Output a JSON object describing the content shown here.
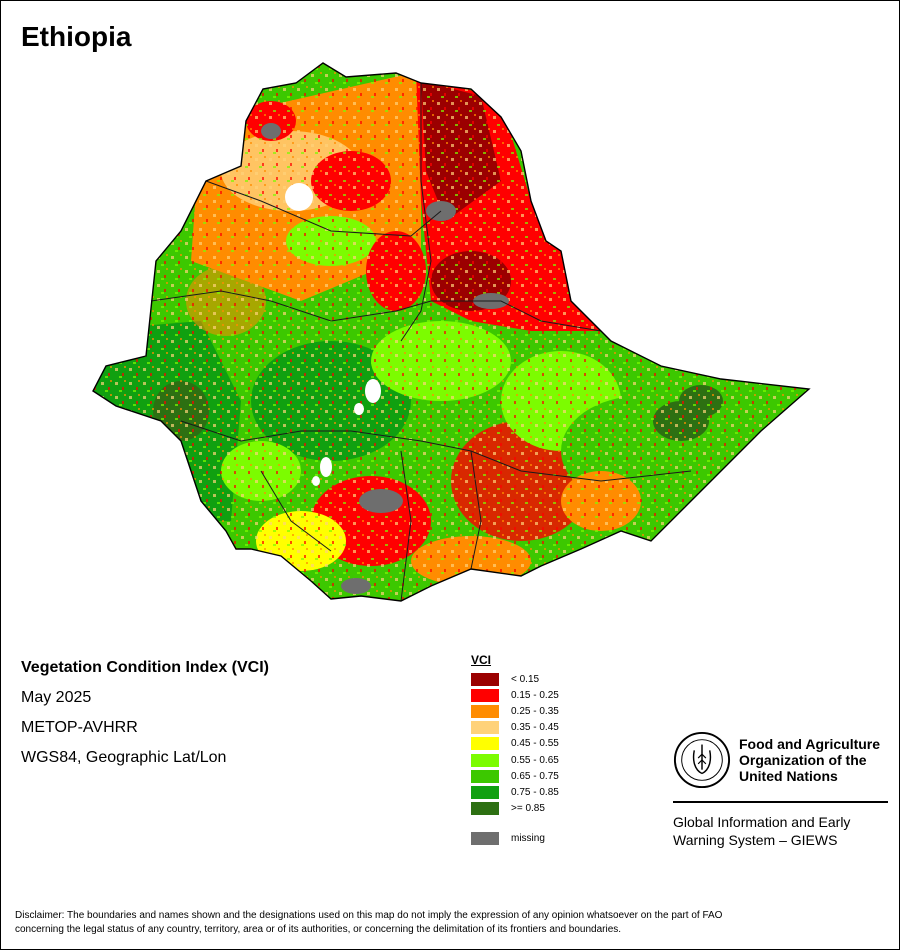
{
  "header": {
    "country": "Ethiopia"
  },
  "info": {
    "product": "Vegetation Condition Index (VCI)",
    "period": "May 2025",
    "sensor": "METOP-AVHRR",
    "projection": "WGS84, Geographic Lat/Lon"
  },
  "legend": {
    "title": "VCI",
    "classes": [
      {
        "label": "< 0.15",
        "color": "#9b0000"
      },
      {
        "label": "0.15 - 0.25",
        "color": "#ff0000"
      },
      {
        "label": "0.25 - 0.35",
        "color": "#ff8c00"
      },
      {
        "label": "0.35 - 0.45",
        "color": "#ffd27a"
      },
      {
        "label": "0.45 - 0.55",
        "color": "#ffff00"
      },
      {
        "label": "0.55 - 0.65",
        "color": "#7cfc00"
      },
      {
        "label": "0.65 - 0.75",
        "color": "#3cc800"
      },
      {
        "label": "0.75 - 0.85",
        "color": "#10a010"
      },
      {
        "label": ">= 0.85",
        "color": "#2d7012"
      }
    ],
    "missing": {
      "label": "missing",
      "color": "#6e6e6e"
    }
  },
  "branding": {
    "org_line1": "Food and Agriculture",
    "org_line2": "Organization of the",
    "org_line3": "United Nations",
    "giews_line1": "Global Information and Early",
    "giews_line2": "Warning System – GIEWS"
  },
  "disclaimer": {
    "line1": "Disclaimer: The boundaries and names shown and the designations used on this map do not imply the expression of any opinion whatsoever on the part of FAO",
    "line2": "concerning the legal status of any country, territory, area or of its authorities, or concerning the delimitation of its frontiers and boundaries."
  }
}
